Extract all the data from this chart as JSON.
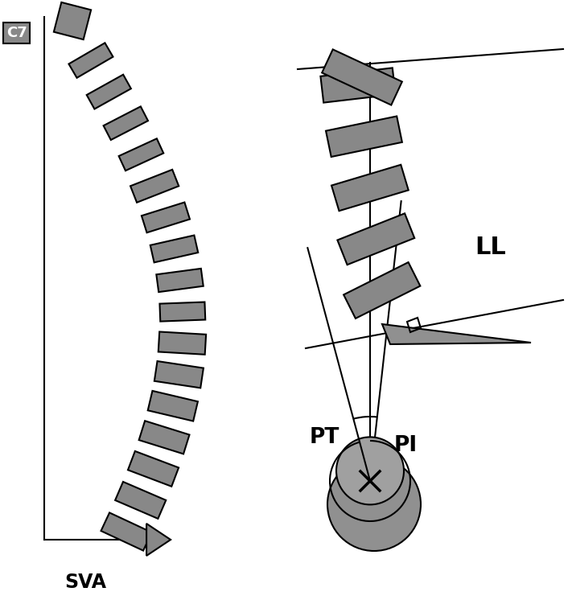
{
  "bg_color": "#ffffff",
  "gray_fill": "#888888",
  "outline_color": "#000000",
  "text_color": "#000000",
  "C7_label": "C7",
  "SVA_label": "SVA",
  "LL_label": "LL",
  "PT_label": "PT",
  "PI_label": "PI",
  "fig_width": 7.11,
  "fig_height": 7.46,
  "dpi": 100
}
